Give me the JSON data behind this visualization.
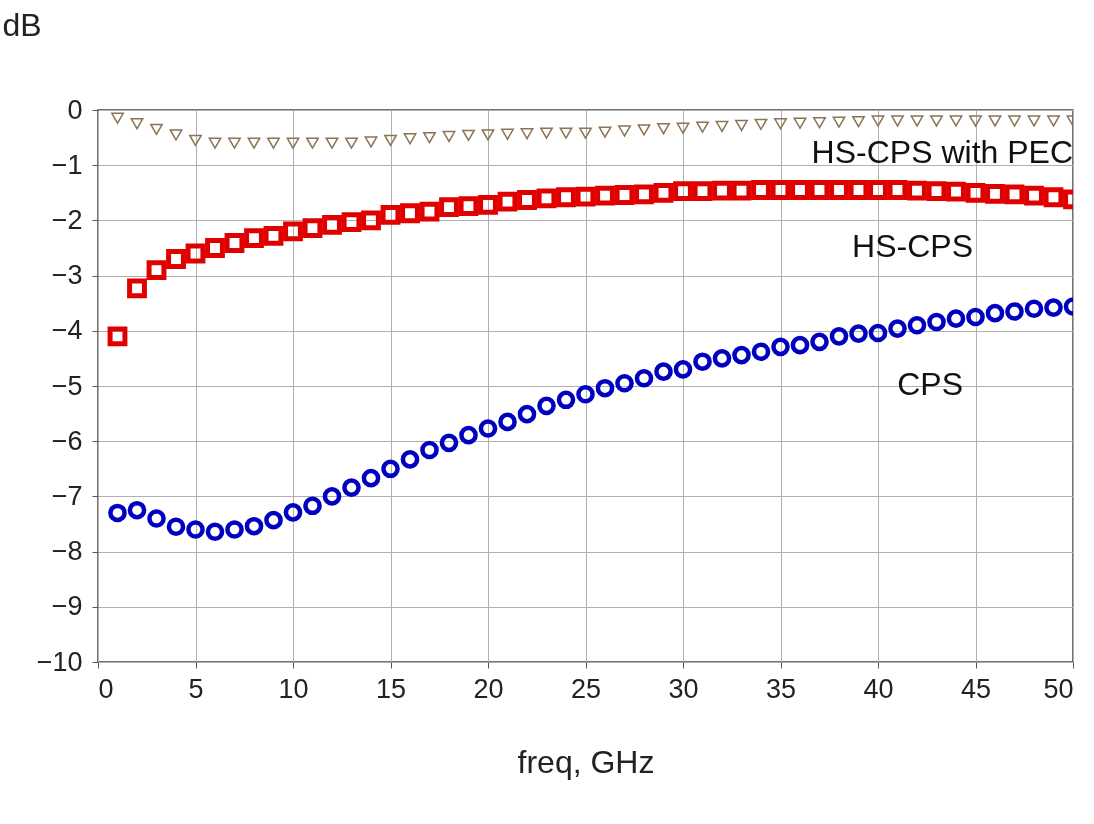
{
  "chart_data": {
    "type": "scatter",
    "xlabel": "freq, GHz",
    "ylabel": "dB",
    "x": [
      1,
      2,
      3,
      4,
      5,
      6,
      7,
      8,
      9,
      10,
      11,
      12,
      13,
      14,
      15,
      16,
      17,
      18,
      19,
      20,
      21,
      22,
      23,
      24,
      25,
      26,
      27,
      28,
      29,
      30,
      31,
      32,
      33,
      34,
      35,
      36,
      37,
      38,
      39,
      40,
      41,
      42,
      43,
      44,
      45,
      46,
      47,
      48,
      49,
      50
    ],
    "series": [
      {
        "name": "HS-CPS with PEC",
        "color": "#8b7355",
        "marker": "triangle",
        "values": [
          -0.15,
          -0.25,
          -0.35,
          -0.45,
          -0.55,
          -0.6,
          -0.6,
          -0.6,
          -0.6,
          -0.6,
          -0.6,
          -0.6,
          -0.6,
          -0.58,
          -0.55,
          -0.52,
          -0.5,
          -0.48,
          -0.46,
          -0.45,
          -0.44,
          -0.43,
          -0.42,
          -0.42,
          -0.42,
          -0.4,
          -0.38,
          -0.36,
          -0.34,
          -0.33,
          -0.31,
          -0.3,
          -0.28,
          -0.26,
          -0.25,
          -0.24,
          -0.23,
          -0.22,
          -0.21,
          -0.2,
          -0.2,
          -0.2,
          -0.2,
          -0.2,
          -0.2,
          -0.2,
          -0.2,
          -0.2,
          -0.2,
          -0.2
        ]
      },
      {
        "name": "HS-CPS",
        "color": "#e00000",
        "marker": "square",
        "values": [
          -4.1,
          -3.23,
          -2.9,
          -2.7,
          -2.6,
          -2.5,
          -2.41,
          -2.32,
          -2.28,
          -2.2,
          -2.14,
          -2.08,
          -2.03,
          -2.0,
          -1.9,
          -1.87,
          -1.84,
          -1.76,
          -1.74,
          -1.72,
          -1.66,
          -1.63,
          -1.6,
          -1.58,
          -1.57,
          -1.55,
          -1.54,
          -1.53,
          -1.5,
          -1.47,
          -1.47,
          -1.46,
          -1.46,
          -1.45,
          -1.45,
          -1.45,
          -1.45,
          -1.45,
          -1.45,
          -1.45,
          -1.45,
          -1.46,
          -1.47,
          -1.48,
          -1.5,
          -1.52,
          -1.53,
          -1.55,
          -1.58,
          -1.62
        ]
      },
      {
        "name": "CPS",
        "color": "#0000c0",
        "marker": "circle",
        "values": [
          -7.3,
          -7.25,
          -7.4,
          -7.55,
          -7.6,
          -7.64,
          -7.6,
          -7.54,
          -7.43,
          -7.29,
          -7.17,
          -7.0,
          -6.84,
          -6.67,
          -6.5,
          -6.33,
          -6.16,
          -6.03,
          -5.89,
          -5.77,
          -5.65,
          -5.51,
          -5.36,
          -5.25,
          -5.15,
          -5.04,
          -4.95,
          -4.86,
          -4.74,
          -4.7,
          -4.56,
          -4.5,
          -4.44,
          -4.38,
          -4.29,
          -4.26,
          -4.2,
          -4.1,
          -4.05,
          -4.04,
          -3.96,
          -3.9,
          -3.84,
          -3.78,
          -3.75,
          -3.68,
          -3.65,
          -3.6,
          -3.58,
          -3.56
        ]
      }
    ],
    "xlim": [
      0,
      50
    ],
    "xticks": [
      0,
      5,
      10,
      15,
      20,
      25,
      30,
      35,
      40,
      45,
      50
    ],
    "ylim": [
      -10,
      0
    ],
    "yticks": [
      -10,
      -9,
      -8,
      -7,
      -6,
      -5,
      -4,
      -3,
      -2,
      -1,
      0
    ],
    "grid": true
  }
}
